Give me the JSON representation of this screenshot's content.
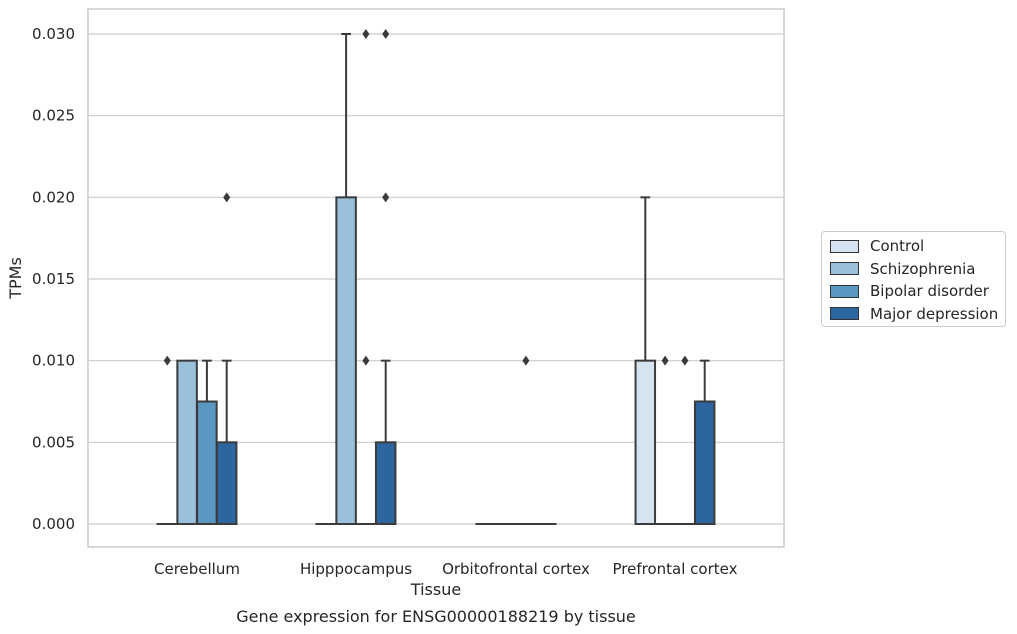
{
  "chart_data": {
    "type": "box",
    "caption": "Gene expression for ENSG00000188219 by tissue",
    "xlabel": "Tissue",
    "ylabel": "TPMs",
    "ylim": [
      -0.0015,
      0.0315
    ],
    "yticks": [
      0.0,
      0.005,
      0.01,
      0.015,
      0.02,
      0.025,
      0.03
    ],
    "ytick_labels": [
      "0.000",
      "0.005",
      "0.010",
      "0.015",
      "0.020",
      "0.025",
      "0.030"
    ],
    "grid": "horizontal",
    "legend_position": "right",
    "categories": [
      "Cerebellum",
      "Hipppocampus",
      "Orbitofrontal cortex",
      "Prefrontal cortex"
    ],
    "series": [
      {
        "name": "Control",
        "color": "#d6e4f2",
        "boxes": [
          {
            "q1": 0,
            "median": 0,
            "q3": 0,
            "whisker_low": 0,
            "whisker_high": 0,
            "outliers": [
              0.01
            ]
          },
          {
            "q1": 0,
            "median": 0,
            "q3": 0,
            "whisker_low": 0,
            "whisker_high": 0,
            "outliers": []
          },
          {
            "q1": 0,
            "median": 0,
            "q3": 0,
            "whisker_low": 0,
            "whisker_high": 0,
            "outliers": []
          },
          {
            "q1": 0,
            "median": 0,
            "q3": 0.01,
            "whisker_low": 0,
            "whisker_high": 0.02,
            "outliers": []
          }
        ]
      },
      {
        "name": "Schizophrenia",
        "color": "#9ac0db",
        "boxes": [
          {
            "q1": 0,
            "median": 0,
            "q3": 0.01,
            "whisker_low": 0,
            "whisker_high": 0.01,
            "outliers": []
          },
          {
            "q1": 0,
            "median": 0,
            "q3": 0.02,
            "whisker_low": 0,
            "whisker_high": 0.03,
            "outliers": []
          },
          {
            "q1": 0,
            "median": 0,
            "q3": 0,
            "whisker_low": 0,
            "whisker_high": 0,
            "outliers": []
          },
          {
            "q1": 0,
            "median": 0,
            "q3": 0,
            "whisker_low": 0,
            "whisker_high": 0,
            "outliers": [
              0.01
            ]
          }
        ]
      },
      {
        "name": "Bipolar disorder",
        "color": "#5a97c1",
        "boxes": [
          {
            "q1": 0,
            "median": 0,
            "q3": 0.0075,
            "whisker_low": 0,
            "whisker_high": 0.01,
            "outliers": []
          },
          {
            "q1": 0,
            "median": 0,
            "q3": 0,
            "whisker_low": 0,
            "whisker_high": 0,
            "outliers": [
              0.01,
              0.03
            ]
          },
          {
            "q1": 0,
            "median": 0,
            "q3": 0,
            "whisker_low": 0,
            "whisker_high": 0,
            "outliers": [
              0.01
            ]
          },
          {
            "q1": 0,
            "median": 0,
            "q3": 0,
            "whisker_low": 0,
            "whisker_high": 0,
            "outliers": [
              0.01
            ]
          }
        ]
      },
      {
        "name": "Major depression",
        "color": "#2c65a0",
        "boxes": [
          {
            "q1": 0,
            "median": 0,
            "q3": 0.005,
            "whisker_low": 0,
            "whisker_high": 0.01,
            "outliers": [
              0.02
            ]
          },
          {
            "q1": 0,
            "median": 0,
            "q3": 0.005,
            "whisker_low": 0,
            "whisker_high": 0.01,
            "outliers": [
              0.02,
              0.03
            ]
          },
          {
            "q1": 0,
            "median": 0,
            "q3": 0,
            "whisker_low": 0,
            "whisker_high": 0,
            "outliers": []
          },
          {
            "q1": 0,
            "median": 0,
            "q3": 0.0075,
            "whisker_low": 0,
            "whisker_high": 0.01,
            "outliers": []
          }
        ]
      }
    ]
  }
}
